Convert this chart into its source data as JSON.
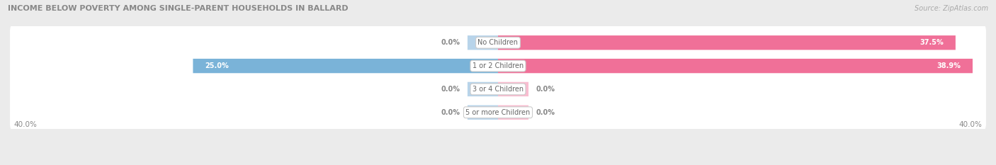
{
  "title": "INCOME BELOW POVERTY AMONG SINGLE-PARENT HOUSEHOLDS IN BALLARD",
  "source": "Source: ZipAtlas.com",
  "categories": [
    "No Children",
    "1 or 2 Children",
    "3 or 4 Children",
    "5 or more Children"
  ],
  "single_father": [
    0.0,
    25.0,
    0.0,
    0.0
  ],
  "single_mother": [
    37.5,
    38.9,
    0.0,
    0.0
  ],
  "max_val": 40.0,
  "father_color": "#7ab3d8",
  "mother_color": "#f07098",
  "father_stub_color": "#b8d4ea",
  "mother_stub_color": "#f9bdd0",
  "row_bg_color": "#eaeaea",
  "row_fill_color": "#f7f7f7",
  "bg_color": "#ebebeb",
  "title_color": "#888888",
  "label_color": "#666666",
  "value_inside_color": "#ffffff",
  "value_outside_color": "#888888",
  "source_color": "#aaaaaa",
  "x_axis_left": "40.0%",
  "x_axis_right": "40.0%",
  "stub_val": 2.5
}
